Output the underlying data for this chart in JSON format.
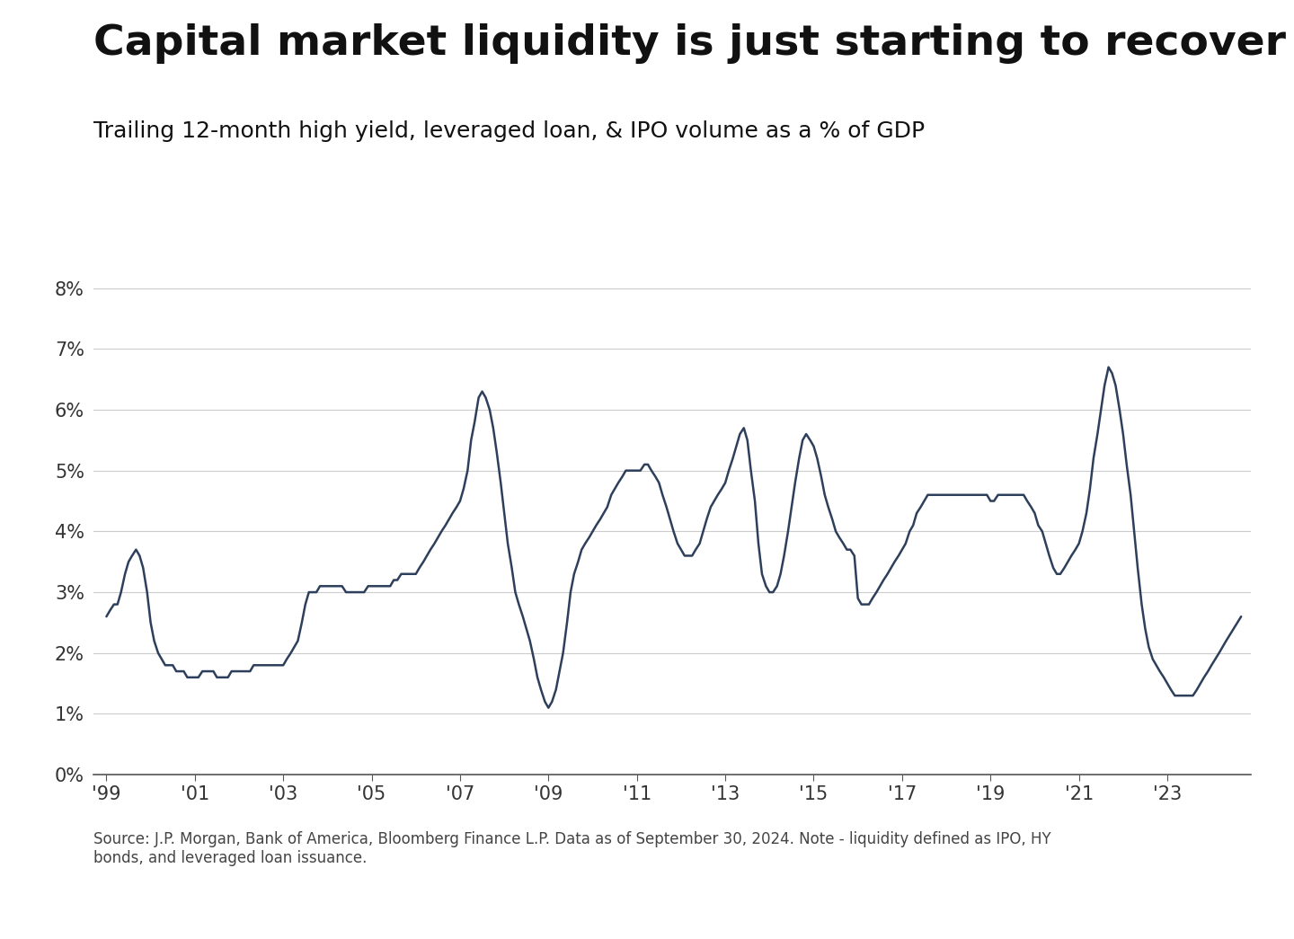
{
  "title": "Capital market liquidity is just starting to recover",
  "subtitle": "Trailing 12-month high yield, leveraged loan, & IPO volume as a % of GDP",
  "source_text": "Source: J.P. Morgan, Bank of America, Bloomberg Finance L.P. Data as of September 30, 2024. Note - liquidity defined as IPO, HY\nbonds, and leveraged loan issuance.",
  "line_color": "#2e3f5c",
  "background_color": "#ffffff",
  "grid_color": "#cccccc",
  "ylim": [
    0,
    0.088
  ],
  "yticks": [
    0,
    0.01,
    0.02,
    0.03,
    0.04,
    0.05,
    0.06,
    0.07,
    0.08
  ],
  "ytick_labels": [
    "0%",
    "1%",
    "2%",
    "3%",
    "4%",
    "5%",
    "6%",
    "7%",
    "8%"
  ],
  "xtick_years": [
    1999,
    2001,
    2003,
    2005,
    2007,
    2009,
    2011,
    2013,
    2015,
    2017,
    2019,
    2021,
    2023
  ],
  "xtick_labels": [
    "'99",
    "'01",
    "'03",
    "'05",
    "'07",
    "'09",
    "'11",
    "'13",
    "'15",
    "'17",
    "'19",
    "'21",
    "'23"
  ],
  "dates": [
    1999.0,
    1999.08,
    1999.17,
    1999.25,
    1999.33,
    1999.42,
    1999.5,
    1999.58,
    1999.67,
    1999.75,
    1999.83,
    1999.92,
    2000.0,
    2000.08,
    2000.17,
    2000.25,
    2000.33,
    2000.42,
    2000.5,
    2000.58,
    2000.67,
    2000.75,
    2000.83,
    2000.92,
    2001.0,
    2001.08,
    2001.17,
    2001.25,
    2001.33,
    2001.42,
    2001.5,
    2001.58,
    2001.67,
    2001.75,
    2001.83,
    2001.92,
    2002.0,
    2002.08,
    2002.17,
    2002.25,
    2002.33,
    2002.42,
    2002.5,
    2002.58,
    2002.67,
    2002.75,
    2002.83,
    2002.92,
    2003.0,
    2003.08,
    2003.17,
    2003.25,
    2003.33,
    2003.42,
    2003.5,
    2003.58,
    2003.67,
    2003.75,
    2003.83,
    2003.92,
    2004.0,
    2004.08,
    2004.17,
    2004.25,
    2004.33,
    2004.42,
    2004.5,
    2004.58,
    2004.67,
    2004.75,
    2004.83,
    2004.92,
    2005.0,
    2005.08,
    2005.17,
    2005.25,
    2005.33,
    2005.42,
    2005.5,
    2005.58,
    2005.67,
    2005.75,
    2005.83,
    2005.92,
    2006.0,
    2006.08,
    2006.17,
    2006.25,
    2006.33,
    2006.42,
    2006.5,
    2006.58,
    2006.67,
    2006.75,
    2006.83,
    2006.92,
    2007.0,
    2007.08,
    2007.17,
    2007.25,
    2007.33,
    2007.42,
    2007.5,
    2007.58,
    2007.67,
    2007.75,
    2007.83,
    2007.92,
    2008.0,
    2008.08,
    2008.17,
    2008.25,
    2008.33,
    2008.42,
    2008.5,
    2008.58,
    2008.67,
    2008.75,
    2008.83,
    2008.92,
    2009.0,
    2009.08,
    2009.17,
    2009.25,
    2009.33,
    2009.42,
    2009.5,
    2009.58,
    2009.67,
    2009.75,
    2009.83,
    2009.92,
    2010.0,
    2010.08,
    2010.17,
    2010.25,
    2010.33,
    2010.42,
    2010.5,
    2010.58,
    2010.67,
    2010.75,
    2010.83,
    2010.92,
    2011.0,
    2011.08,
    2011.17,
    2011.25,
    2011.33,
    2011.42,
    2011.5,
    2011.58,
    2011.67,
    2011.75,
    2011.83,
    2011.92,
    2012.0,
    2012.08,
    2012.17,
    2012.25,
    2012.33,
    2012.42,
    2012.5,
    2012.58,
    2012.67,
    2012.75,
    2012.83,
    2012.92,
    2013.0,
    2013.08,
    2013.17,
    2013.25,
    2013.33,
    2013.42,
    2013.5,
    2013.58,
    2013.67,
    2013.75,
    2013.83,
    2013.92,
    2014.0,
    2014.08,
    2014.17,
    2014.25,
    2014.33,
    2014.42,
    2014.5,
    2014.58,
    2014.67,
    2014.75,
    2014.83,
    2014.92,
    2015.0,
    2015.08,
    2015.17,
    2015.25,
    2015.33,
    2015.42,
    2015.5,
    2015.58,
    2015.67,
    2015.75,
    2015.83,
    2015.92,
    2016.0,
    2016.08,
    2016.17,
    2016.25,
    2016.33,
    2016.42,
    2016.5,
    2016.58,
    2016.67,
    2016.75,
    2016.83,
    2016.92,
    2017.0,
    2017.08,
    2017.17,
    2017.25,
    2017.33,
    2017.42,
    2017.5,
    2017.58,
    2017.67,
    2017.75,
    2017.83,
    2017.92,
    2018.0,
    2018.08,
    2018.17,
    2018.25,
    2018.33,
    2018.42,
    2018.5,
    2018.58,
    2018.67,
    2018.75,
    2018.83,
    2018.92,
    2019.0,
    2019.08,
    2019.17,
    2019.25,
    2019.33,
    2019.42,
    2019.5,
    2019.58,
    2019.67,
    2019.75,
    2019.83,
    2019.92,
    2020.0,
    2020.08,
    2020.17,
    2020.25,
    2020.33,
    2020.42,
    2020.5,
    2020.58,
    2020.67,
    2020.75,
    2020.83,
    2020.92,
    2021.0,
    2021.08,
    2021.17,
    2021.25,
    2021.33,
    2021.42,
    2021.5,
    2021.58,
    2021.67,
    2021.75,
    2021.83,
    2021.92,
    2022.0,
    2022.08,
    2022.17,
    2022.25,
    2022.33,
    2022.42,
    2022.5,
    2022.58,
    2022.67,
    2022.75,
    2022.83,
    2022.92,
    2023.0,
    2023.08,
    2023.17,
    2023.25,
    2023.33,
    2023.42,
    2023.5,
    2023.58,
    2023.67,
    2023.75,
    2023.83,
    2023.92,
    2024.0,
    2024.17,
    2024.33,
    2024.5,
    2024.67
  ],
  "values": [
    0.026,
    0.027,
    0.028,
    0.028,
    0.03,
    0.033,
    0.035,
    0.036,
    0.037,
    0.036,
    0.034,
    0.03,
    0.025,
    0.022,
    0.02,
    0.019,
    0.018,
    0.018,
    0.018,
    0.017,
    0.017,
    0.017,
    0.016,
    0.016,
    0.016,
    0.016,
    0.017,
    0.017,
    0.017,
    0.017,
    0.016,
    0.016,
    0.016,
    0.016,
    0.017,
    0.017,
    0.017,
    0.017,
    0.017,
    0.017,
    0.018,
    0.018,
    0.018,
    0.018,
    0.018,
    0.018,
    0.018,
    0.018,
    0.018,
    0.019,
    0.02,
    0.021,
    0.022,
    0.025,
    0.028,
    0.03,
    0.03,
    0.03,
    0.031,
    0.031,
    0.031,
    0.031,
    0.031,
    0.031,
    0.031,
    0.03,
    0.03,
    0.03,
    0.03,
    0.03,
    0.03,
    0.031,
    0.031,
    0.031,
    0.031,
    0.031,
    0.031,
    0.031,
    0.032,
    0.032,
    0.033,
    0.033,
    0.033,
    0.033,
    0.033,
    0.034,
    0.035,
    0.036,
    0.037,
    0.038,
    0.039,
    0.04,
    0.041,
    0.042,
    0.043,
    0.044,
    0.045,
    0.047,
    0.05,
    0.055,
    0.058,
    0.062,
    0.063,
    0.062,
    0.06,
    0.057,
    0.053,
    0.048,
    0.043,
    0.038,
    0.034,
    0.03,
    0.028,
    0.026,
    0.024,
    0.022,
    0.019,
    0.016,
    0.014,
    0.012,
    0.011,
    0.012,
    0.014,
    0.017,
    0.02,
    0.025,
    0.03,
    0.033,
    0.035,
    0.037,
    0.038,
    0.039,
    0.04,
    0.041,
    0.042,
    0.043,
    0.044,
    0.046,
    0.047,
    0.048,
    0.049,
    0.05,
    0.05,
    0.05,
    0.05,
    0.05,
    0.051,
    0.051,
    0.05,
    0.049,
    0.048,
    0.046,
    0.044,
    0.042,
    0.04,
    0.038,
    0.037,
    0.036,
    0.036,
    0.036,
    0.037,
    0.038,
    0.04,
    0.042,
    0.044,
    0.045,
    0.046,
    0.047,
    0.048,
    0.05,
    0.052,
    0.054,
    0.056,
    0.057,
    0.055,
    0.05,
    0.045,
    0.038,
    0.033,
    0.031,
    0.03,
    0.03,
    0.031,
    0.033,
    0.036,
    0.04,
    0.044,
    0.048,
    0.052,
    0.055,
    0.056,
    0.055,
    0.054,
    0.052,
    0.049,
    0.046,
    0.044,
    0.042,
    0.04,
    0.039,
    0.038,
    0.037,
    0.037,
    0.036,
    0.029,
    0.028,
    0.028,
    0.028,
    0.029,
    0.03,
    0.031,
    0.032,
    0.033,
    0.034,
    0.035,
    0.036,
    0.037,
    0.038,
    0.04,
    0.041,
    0.043,
    0.044,
    0.045,
    0.046,
    0.046,
    0.046,
    0.046,
    0.046,
    0.046,
    0.046,
    0.046,
    0.046,
    0.046,
    0.046,
    0.046,
    0.046,
    0.046,
    0.046,
    0.046,
    0.046,
    0.045,
    0.045,
    0.046,
    0.046,
    0.046,
    0.046,
    0.046,
    0.046,
    0.046,
    0.046,
    0.045,
    0.044,
    0.043,
    0.041,
    0.04,
    0.038,
    0.036,
    0.034,
    0.033,
    0.033,
    0.034,
    0.035,
    0.036,
    0.037,
    0.038,
    0.04,
    0.043,
    0.047,
    0.052,
    0.056,
    0.06,
    0.064,
    0.067,
    0.066,
    0.064,
    0.06,
    0.056,
    0.051,
    0.046,
    0.04,
    0.034,
    0.028,
    0.024,
    0.021,
    0.019,
    0.018,
    0.017,
    0.016,
    0.015,
    0.014,
    0.013,
    0.013,
    0.013,
    0.013,
    0.013,
    0.013,
    0.014,
    0.015,
    0.016,
    0.017,
    0.018,
    0.02,
    0.022,
    0.024,
    0.026
  ]
}
